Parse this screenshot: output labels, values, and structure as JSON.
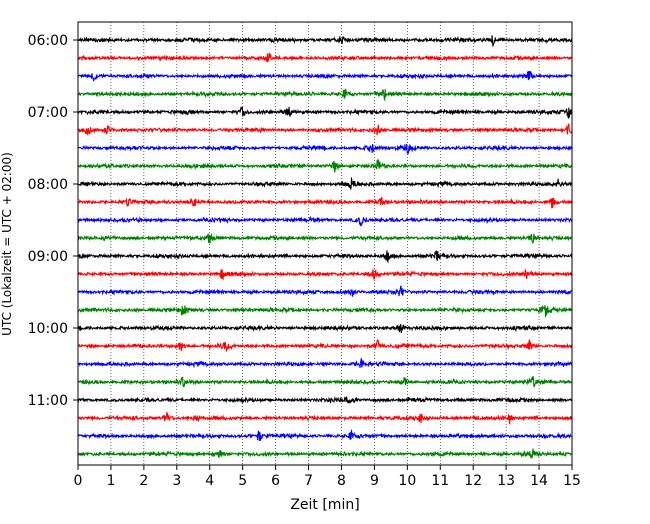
{
  "chart_data": {
    "type": "line",
    "title": "",
    "xlabel": "Zeit  [min]",
    "ylabel": "UTC (Lokalzeit = UTC + 02:00)",
    "xlim": [
      0,
      15
    ],
    "x_ticks": [
      "0",
      "1",
      "2",
      "3",
      "4",
      "5",
      "6",
      "7",
      "8",
      "9",
      "10",
      "11",
      "12",
      "13",
      "14",
      "15"
    ],
    "y_tick_labels": [
      "06:00",
      "07:00",
      "08:00",
      "09:00",
      "10:00",
      "11:00"
    ],
    "grid": "vertical-dotted",
    "trace_interval_min": 15,
    "colors_cycle": [
      "#000000",
      "#ff0000",
      "#0000ff",
      "#008000"
    ],
    "traces": [
      {
        "start": "06:00",
        "color": "#000000",
        "events": [
          8.0,
          12.6
        ]
      },
      {
        "start": "06:15",
        "color": "#ff0000",
        "events": [
          5.8
        ]
      },
      {
        "start": "06:30",
        "color": "#0000ff",
        "events": [
          0.5,
          13.7
        ]
      },
      {
        "start": "06:45",
        "color": "#008000",
        "events": [
          8.1,
          9.3
        ]
      },
      {
        "start": "07:00",
        "color": "#000000",
        "events": [
          5.0,
          6.4,
          14.9
        ]
      },
      {
        "start": "07:15",
        "color": "#ff0000",
        "events": [
          0.3,
          0.9,
          9.1,
          14.9
        ]
      },
      {
        "start": "07:30",
        "color": "#0000ff",
        "events": [
          8.9,
          10.0
        ]
      },
      {
        "start": "07:45",
        "color": "#008000",
        "events": [
          7.8,
          9.1
        ]
      },
      {
        "start": "08:00",
        "color": "#000000",
        "events": [
          8.3,
          14.6
        ]
      },
      {
        "start": "08:15",
        "color": "#ff0000",
        "events": [
          1.5,
          3.5,
          9.2,
          14.4
        ]
      },
      {
        "start": "08:30",
        "color": "#0000ff",
        "events": [
          8.6
        ]
      },
      {
        "start": "08:45",
        "color": "#008000",
        "events": [
          4.0,
          13.8
        ]
      },
      {
        "start": "09:00",
        "color": "#000000",
        "events": [
          9.4,
          10.9
        ]
      },
      {
        "start": "09:15",
        "color": "#ff0000",
        "events": [
          4.4,
          9.0,
          13.6
        ]
      },
      {
        "start": "09:30",
        "color": "#0000ff",
        "events": [
          8.3,
          9.8
        ]
      },
      {
        "start": "09:45",
        "color": "#008000",
        "events": [
          3.2,
          14.2
        ]
      },
      {
        "start": "10:00",
        "color": "#000000",
        "events": [
          9.8
        ]
      },
      {
        "start": "10:15",
        "color": "#ff0000",
        "events": [
          3.1,
          4.5,
          9.1,
          13.7
        ]
      },
      {
        "start": "10:30",
        "color": "#0000ff",
        "events": [
          8.6
        ]
      },
      {
        "start": "10:45",
        "color": "#008000",
        "events": [
          3.2,
          9.9,
          13.8
        ]
      },
      {
        "start": "11:00",
        "color": "#000000",
        "events": [
          8.2
        ]
      },
      {
        "start": "11:15",
        "color": "#ff0000",
        "events": [
          2.7,
          3.6,
          10.4,
          13.1
        ]
      },
      {
        "start": "11:30",
        "color": "#0000ff",
        "events": [
          5.5,
          8.3
        ]
      },
      {
        "start": "11:45",
        "color": "#008000",
        "events": [
          4.3,
          13.8
        ]
      }
    ]
  }
}
